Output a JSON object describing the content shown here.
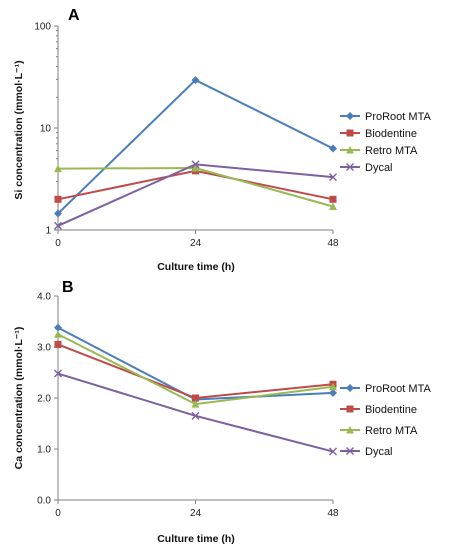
{
  "chart_data": [
    {
      "type": "line",
      "panel": "A",
      "x": [
        0,
        24,
        48
      ],
      "xticks": [
        "0",
        "24",
        "48"
      ],
      "xlabel": "Culture time (h)",
      "ylabel": "Si concentration (mmol·L⁻¹)",
      "yscale": "log",
      "ylim": [
        1,
        100
      ],
      "yticks": [
        "1",
        "10",
        "100"
      ],
      "grid": false,
      "legend": "right",
      "series": [
        {
          "name": "ProRoot MTA",
          "marker": "diamond",
          "color": "#4a7ebb",
          "values": [
            1.45,
            29.5,
            6.3
          ]
        },
        {
          "name": "Biodentine",
          "marker": "square",
          "color": "#be4b48",
          "values": [
            2.0,
            3.8,
            2.0
          ]
        },
        {
          "name": "Retro MTA",
          "marker": "triangle",
          "color": "#98b954",
          "values": [
            4.0,
            4.05,
            1.7
          ]
        },
        {
          "name": "Dycal",
          "marker": "x",
          "color": "#7d60a0",
          "values": [
            1.1,
            4.4,
            3.3
          ]
        }
      ]
    },
    {
      "type": "line",
      "panel": "B",
      "x": [
        0,
        24,
        48
      ],
      "xticks": [
        "0",
        "24",
        "48"
      ],
      "xlabel": "Culture time (h)",
      "ylabel": "Ca concentration (mmol·L⁻¹)",
      "ylim": [
        0,
        4.0
      ],
      "yticks": [
        "0.0",
        "1.0",
        "2.0",
        "3.0",
        "4.0"
      ],
      "grid": false,
      "legend": "right",
      "series": [
        {
          "name": "ProRoot MTA",
          "marker": "diamond",
          "color": "#4a7ebb",
          "values": [
            3.38,
            1.97,
            2.1
          ]
        },
        {
          "name": "Biodentine",
          "marker": "square",
          "color": "#be4b48",
          "values": [
            3.05,
            2.0,
            2.27
          ]
        },
        {
          "name": "Retro MTA",
          "marker": "triangle",
          "color": "#98b954",
          "values": [
            3.25,
            1.88,
            2.22
          ]
        },
        {
          "name": "Dycal",
          "marker": "x",
          "color": "#7d60a0",
          "values": [
            2.48,
            1.65,
            0.95
          ]
        }
      ]
    }
  ]
}
